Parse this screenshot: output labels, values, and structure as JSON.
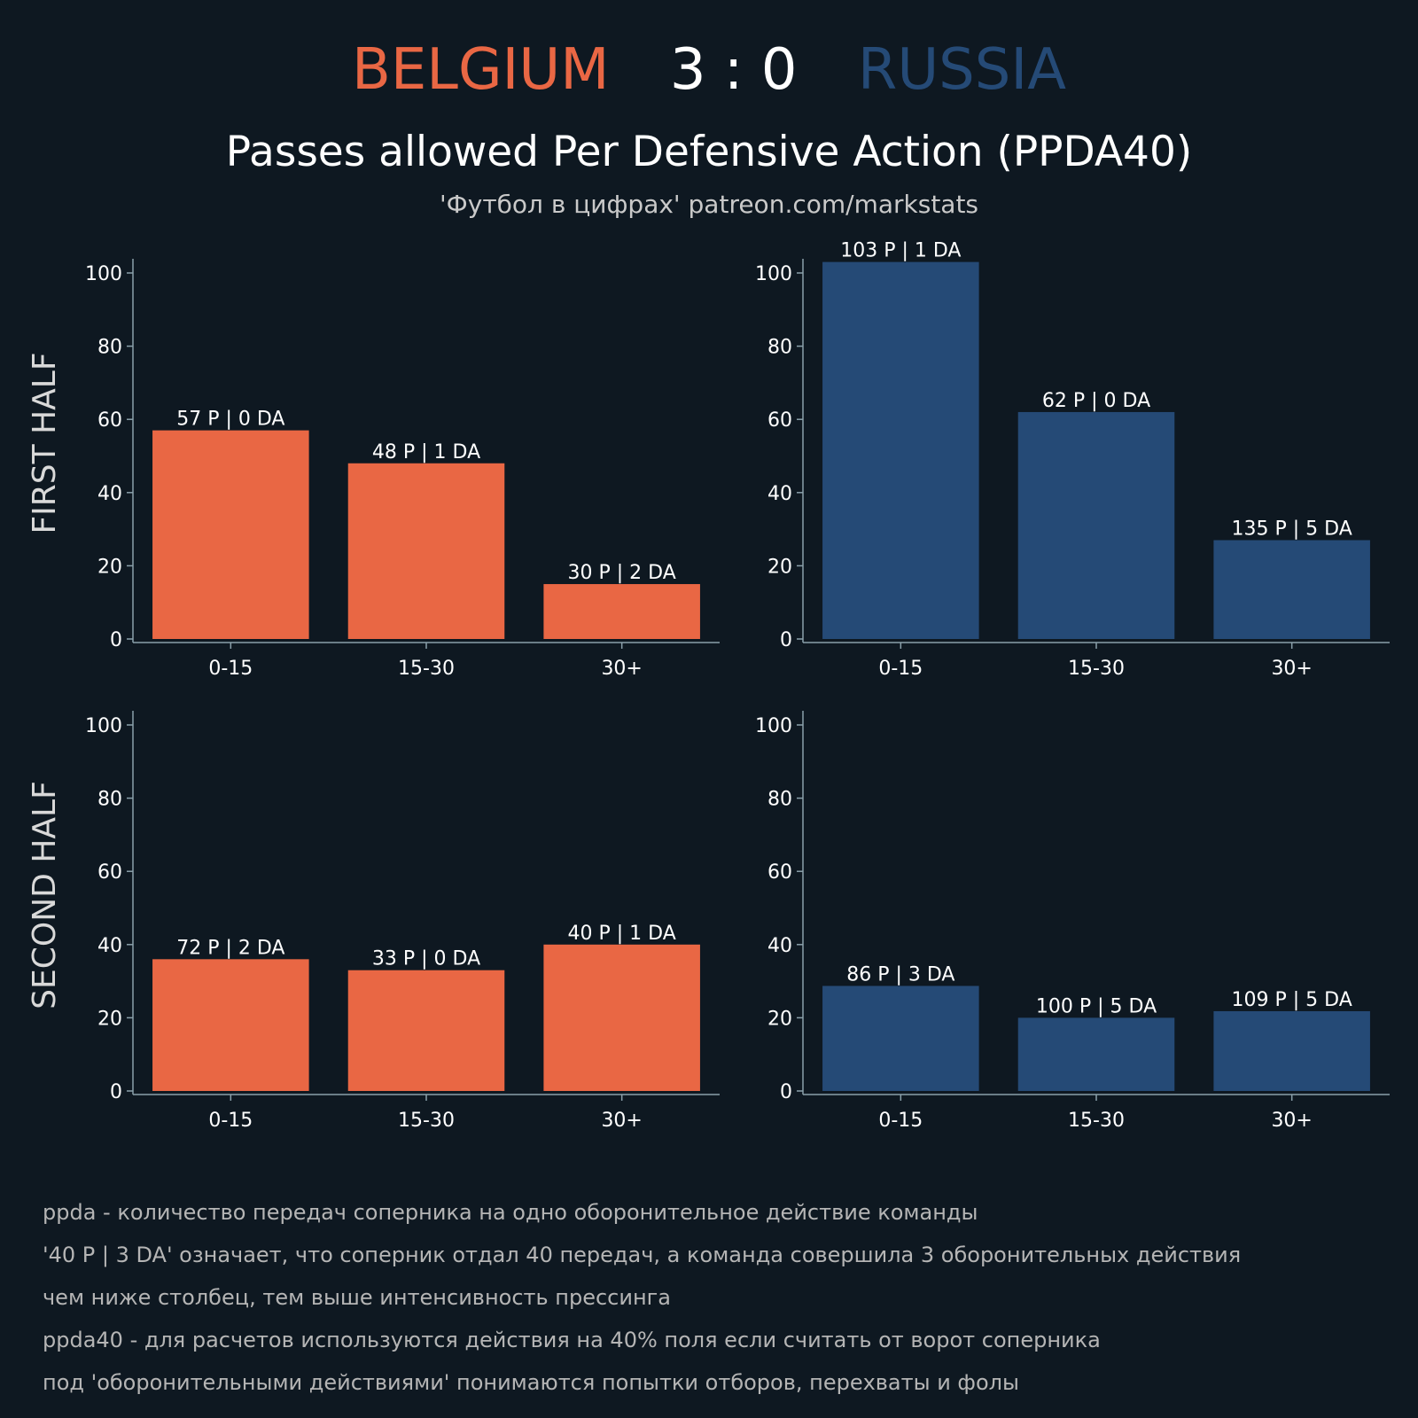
{
  "header": {
    "team_home": "BELGIUM",
    "score": "3 : 0",
    "team_away": "RUSSIA",
    "title": "Passes allowed Per Defensive Action (PPDA40)",
    "subtitle": "'Футбол в цифрах' patreon.com/markstats"
  },
  "row_labels": [
    "FIRST HALF",
    "SECOND HALF"
  ],
  "colors": {
    "background": "#0e1821",
    "belgium": "#e96744",
    "russia": "#254a76"
  },
  "chart_data": [
    {
      "type": "bar",
      "team": "BELGIUM",
      "half": "FIRST HALF",
      "categories": [
        "0-15",
        "15-30",
        "30+"
      ],
      "values": [
        57,
        48,
        15
      ],
      "labels": [
        "57 P | 0 DA",
        "48 P | 1 DA",
        "30 P | 2 DA"
      ],
      "ylim": [
        0,
        100
      ],
      "yticks": [
        0,
        20,
        40,
        60,
        80,
        100
      ],
      "color": "#e96744"
    },
    {
      "type": "bar",
      "team": "RUSSIA",
      "half": "FIRST HALF",
      "categories": [
        "0-15",
        "15-30",
        "30+"
      ],
      "values": [
        103,
        62,
        27
      ],
      "labels": [
        "103 P | 1 DA",
        "62 P | 0 DA",
        "135 P | 5 DA"
      ],
      "ylim": [
        0,
        100
      ],
      "yticks": [
        0,
        20,
        40,
        60,
        80,
        100
      ],
      "color": "#254a76"
    },
    {
      "type": "bar",
      "team": "BELGIUM",
      "half": "SECOND HALF",
      "categories": [
        "0-15",
        "15-30",
        "30+"
      ],
      "values": [
        36,
        33,
        40
      ],
      "labels": [
        "72 P | 2 DA",
        "33 P | 0 DA",
        "40 P | 1 DA"
      ],
      "ylim": [
        0,
        100
      ],
      "yticks": [
        0,
        20,
        40,
        60,
        80,
        100
      ],
      "color": "#e96744"
    },
    {
      "type": "bar",
      "team": "RUSSIA",
      "half": "SECOND HALF",
      "categories": [
        "0-15",
        "15-30",
        "30+"
      ],
      "values": [
        28.7,
        20,
        21.8
      ],
      "labels": [
        "86 P | 3 DA",
        "100 P | 5 DA",
        "109 P | 5 DA"
      ],
      "ylim": [
        0,
        100
      ],
      "yticks": [
        0,
        20,
        40,
        60,
        80,
        100
      ],
      "color": "#254a76"
    }
  ],
  "notes": [
    "ppda - количество передач соперника на одно оборонительное действие команды",
    "'40 P | 3 DA' означает, что соперник отдал 40 передач, а команда совершила 3 оборонительных действия",
    "чем ниже столбец, тем выше интенсивность прессинга",
    "ppda40 - для расчетов используются действия на 40% поля если считать от ворот соперника",
    "под 'оборонительными действиями' понимаются попытки отборов, перехваты и фолы"
  ]
}
